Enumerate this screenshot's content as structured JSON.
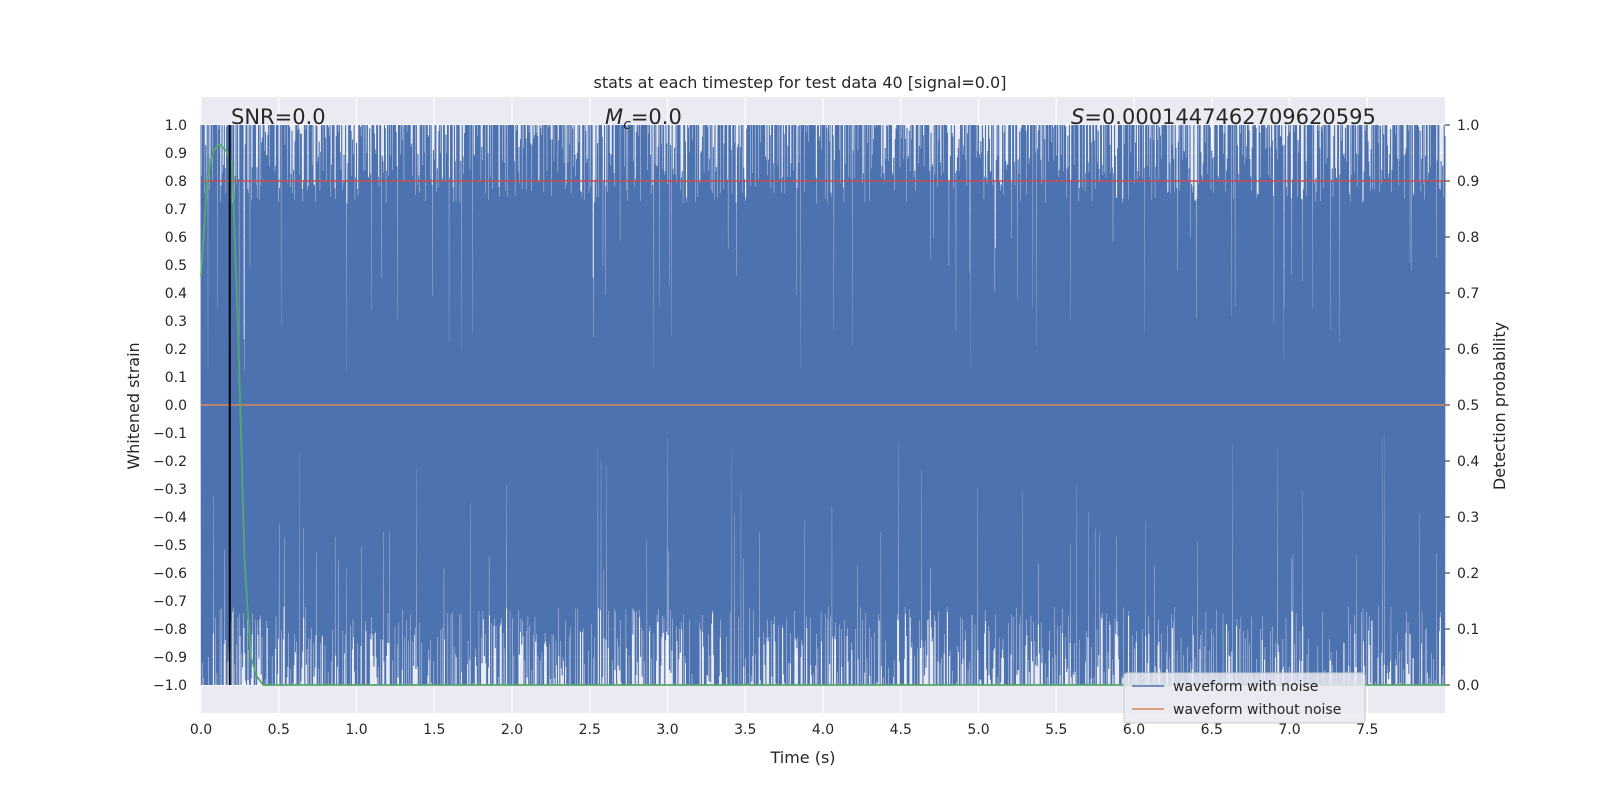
{
  "chart_data": {
    "type": "line",
    "title": "stats at each timestep for test data 40 [signal=0.0]",
    "xlabel": "Time (s)",
    "ylabel": "Whitened strain",
    "y2label": "Detection probability",
    "xlim": [
      0.0,
      8.0
    ],
    "ylim": [
      -1.1,
      1.1
    ],
    "y2lim": [
      -0.05,
      1.05
    ],
    "x_ticks": [
      "0.0",
      "0.5",
      "1.0",
      "1.5",
      "2.0",
      "2.5",
      "3.0",
      "3.5",
      "4.0",
      "4.5",
      "5.0",
      "5.5",
      "6.0",
      "6.5",
      "7.0",
      "7.5"
    ],
    "y_ticks": [
      "1.0",
      "0.9",
      "0.8",
      "0.7",
      "0.6",
      "0.5",
      "0.4",
      "0.3",
      "0.2",
      "0.1",
      "0.0",
      "−0.1",
      "−0.2",
      "−0.3",
      "−0.4",
      "−0.5",
      "−0.6",
      "−0.7",
      "−0.8",
      "−0.9",
      "−1.0"
    ],
    "y2_ticks": [
      "1.0",
      "0.9",
      "0.8",
      "0.7",
      "0.6",
      "0.5",
      "0.4",
      "0.3",
      "0.2",
      "0.1",
      "0.0"
    ],
    "grid": true,
    "legend_position": "lower right",
    "annotations": {
      "snr": "SNR=0.0",
      "mc_symbol": "M",
      "mc_sub": "c",
      "mc_value": "=0.0",
      "s_symbol": "S",
      "s_value": "=0.0001447462709620595"
    },
    "series": [
      {
        "name": "waveform with noise",
        "color": "#4c72b0",
        "axis": "left",
        "kind": "whitened noise strain, clipped to [-1, 1]"
      },
      {
        "name": "waveform without noise",
        "color": "#dd8452",
        "axis": "left",
        "x": [
          0.0,
          8.0
        ],
        "y": [
          0.0,
          0.0
        ]
      },
      {
        "color": "#c44e52",
        "axis": "left",
        "x": [
          0.0,
          8.0
        ],
        "y": [
          0.8,
          0.8
        ]
      },
      {
        "color": "#55a868",
        "axis": "right",
        "x": [
          0.0,
          0.04,
          0.08,
          0.12,
          0.16,
          0.2,
          0.24,
          0.28,
          0.32,
          0.36,
          0.4,
          1.0,
          2.0,
          3.0,
          4.0,
          5.0,
          6.0,
          7.0,
          8.0
        ],
        "y": [
          0.73,
          0.9,
          0.955,
          0.965,
          0.955,
          0.93,
          0.62,
          0.22,
          0.05,
          0.015,
          0.0,
          0.0,
          0.0,
          0.0,
          0.0,
          0.0,
          0.0,
          0.0,
          0.0
        ]
      },
      {
        "color": "#000000",
        "axis": "left",
        "kind": "vertical marker",
        "x": [
          0.185,
          0.185
        ],
        "y": [
          -1.0,
          1.0
        ]
      }
    ]
  }
}
